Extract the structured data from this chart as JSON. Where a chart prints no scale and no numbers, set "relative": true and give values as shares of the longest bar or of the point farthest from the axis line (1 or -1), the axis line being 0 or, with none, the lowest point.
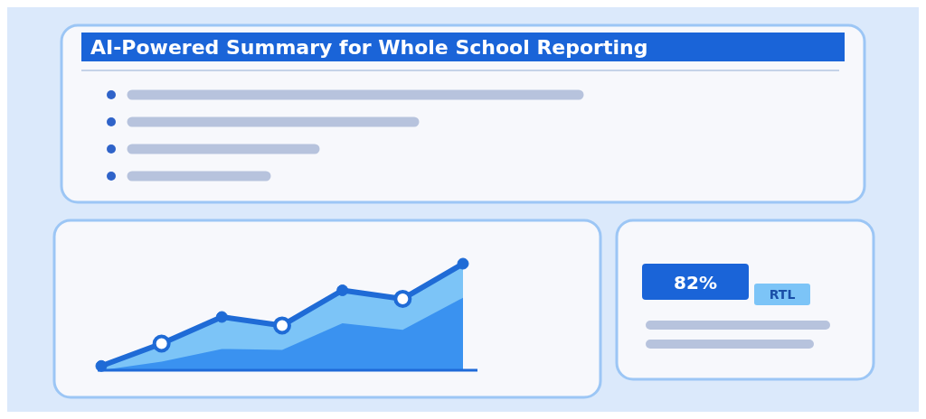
{
  "chart_data": [
    {
      "type": "area",
      "title": "AI-Powered Summary for Whole School Reporting",
      "relative": true,
      "categories": [
        null,
        null,
        null,
        null,
        null,
        null,
        null
      ],
      "series": [
        {
          "color": "#7cc4f7",
          "marker": "circle",
          "values": [
            0.04,
            0.25,
            0.5,
            0.42,
            0.75,
            0.67,
            1
          ]
        },
        {
          "color": "#3a92f0",
          "marker": "none",
          "values": [
            0,
            0.08,
            0.2,
            0.19,
            0.44,
            0.38,
            0.68
          ]
        }
      ]
    },
    {
      "type": "other",
      "annotations": [
        "82%",
        "RTL"
      ]
    }
  ]
}
